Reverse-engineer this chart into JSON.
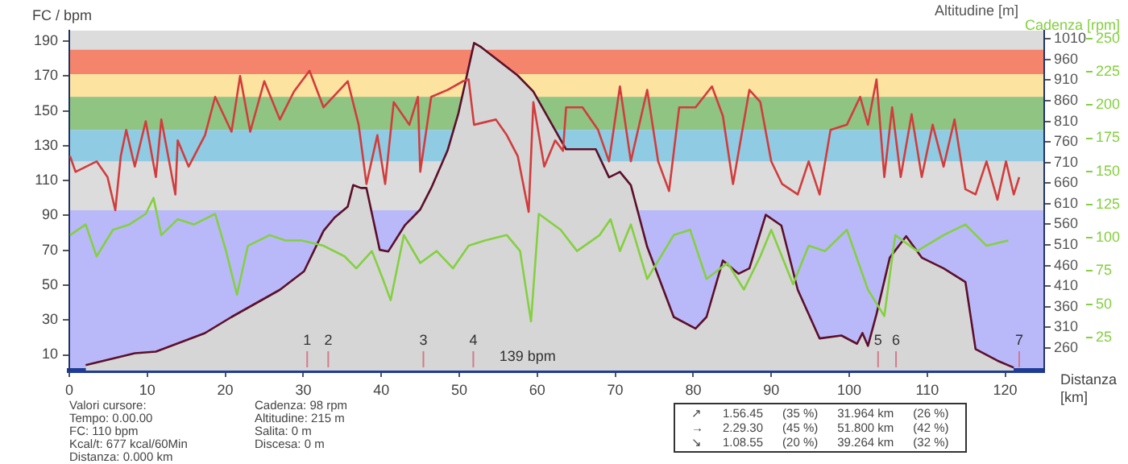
{
  "chart_data": {
    "type": "line",
    "xlabel": "Distanza [km]",
    "ylabel": "FC / bpm",
    "y2label": "Altitudine [m]",
    "y3label": "Cadenza [rpm]",
    "xlim": [
      0,
      125
    ],
    "xticks": [
      0,
      10,
      20,
      30,
      40,
      50,
      60,
      70,
      80,
      90,
      100,
      110,
      120
    ],
    "ylim": [
      1,
      196
    ],
    "yticks": [
      10,
      30,
      50,
      70,
      90,
      110,
      130,
      150,
      170,
      190
    ],
    "y2lim": [
      205,
      1030
    ],
    "y2ticks": [
      260,
      310,
      360,
      410,
      460,
      510,
      560,
      610,
      660,
      710,
      760,
      810,
      860,
      910,
      960,
      1010
    ],
    "y3lim": [
      0,
      256
    ],
    "y3ticks": [
      25,
      50,
      75,
      100,
      125,
      150,
      175,
      200,
      225,
      250
    ],
    "legend": false,
    "marker": "none",
    "line_style": "solid",
    "bands": [
      {
        "axis": "y",
        "from": 171,
        "to": 185,
        "color": "#f4846c"
      },
      {
        "axis": "y",
        "from": 158,
        "to": 171,
        "color": "#fde3a0"
      },
      {
        "axis": "y",
        "from": 139,
        "to": 158,
        "color": "#8fc483"
      },
      {
        "axis": "y",
        "from": 121,
        "to": 139,
        "color": "#8fcbe3"
      },
      {
        "axis": "y",
        "from": 1,
        "to": 93,
        "color": "#b9b9fa"
      }
    ],
    "series": [
      {
        "color": "#d23c3c",
        "x": [
          0.1,
          0.8,
          3.5,
          4.9,
          5.9,
          6.6,
          7.3,
          8.4,
          9.8,
          11.1,
          11.8,
          13.6,
          13.9,
          15.3,
          17.4,
          18.7,
          20.8,
          21.9,
          23.2,
          25.0,
          27.0,
          28.8,
          30.8,
          32.6,
          35.7,
          37.1,
          38.1,
          39.5,
          40.5,
          41.6,
          43.6,
          44.7,
          45.0,
          46.4,
          48.5,
          50.5,
          51.2,
          51.9,
          54.7,
          56.1,
          57.5,
          58.9,
          59.5,
          60.9,
          62.3,
          63.3,
          63.7,
          65.8,
          67.8,
          69.2,
          70.6,
          72.0,
          74.1,
          75.5,
          76.9,
          78.2,
          80.3,
          82.4,
          83.8,
          85.1,
          87.2,
          88.6,
          90.0,
          91.4,
          93.4,
          94.8,
          96.2,
          97.6,
          99.7,
          101.4,
          102.4,
          103.5,
          104.5,
          105.5,
          106.6,
          108.0,
          109.3,
          110.7,
          112.1,
          113.5,
          114.9,
          116.2,
          117.6,
          119.0,
          120.1,
          121.1,
          121.8
        ],
        "values": [
          124,
          115,
          121,
          112,
          93,
          124,
          139,
          118,
          144,
          112,
          145,
          102,
          133,
          118,
          136,
          158,
          138,
          170,
          138,
          167,
          145,
          161,
          173,
          152,
          167,
          142,
          108,
          136,
          108,
          155,
          142,
          158,
          115,
          158,
          162,
          167,
          168,
          142,
          145,
          136,
          124,
          92,
          155,
          118,
          133,
          127,
          152,
          152,
          139,
          121,
          164,
          121,
          162,
          121,
          104,
          152,
          152,
          164,
          147,
          108,
          162,
          155,
          121,
          108,
          102,
          121,
          102,
          139,
          142,
          158,
          142,
          168,
          112,
          152,
          112,
          148,
          112,
          142,
          118,
          145,
          105,
          102,
          121,
          99,
          121,
          102,
          112
        ]
      },
      {
        "axis": "y3",
        "color": "#84d040",
        "x": [
          0.1,
          2.1,
          3.5,
          5.6,
          7.7,
          9.8,
          10.8,
          11.8,
          13.9,
          16.0,
          18.7,
          20.1,
          21.5,
          22.9,
          25.7,
          27.7,
          29.8,
          32.6,
          35.3,
          36.8,
          38.8,
          40.2,
          41.2,
          42.9,
          45.0,
          47.1,
          49.2,
          51.2,
          53.3,
          56.1,
          57.8,
          59.2,
          60.2,
          63.0,
          65.1,
          68.0,
          69.4,
          70.6,
          72.0,
          74.1,
          77.5,
          79.6,
          81.7,
          84.4,
          86.5,
          88.6,
          90.0,
          92.8,
          94.8,
          96.9,
          99.7,
          102.4,
          104.5,
          105.9,
          108.7,
          112.1,
          114.9,
          117.6,
          120.4
        ],
        "values": [
          102,
          110,
          86,
          106,
          110,
          118,
          130,
          102,
          114,
          110,
          118,
          90,
          57,
          94,
          102,
          98,
          98,
          94,
          86,
          77,
          90,
          69,
          53,
          102,
          81,
          90,
          77,
          94,
          98,
          102,
          90,
          37,
          118,
          106,
          90,
          102,
          114,
          90,
          110,
          69,
          102,
          106,
          69,
          81,
          61,
          86,
          106,
          65,
          94,
          90,
          106,
          61,
          41,
          102,
          90,
          102,
          110,
          94,
          98
        ]
      },
      {
        "type": "area",
        "axis": "y2",
        "color": "#5c0f2a",
        "x": [
          2.1,
          8.4,
          11.1,
          17.4,
          20.8,
          27.0,
          30.1,
          32.6,
          34.0,
          35.7,
          36.4,
          37.4,
          38.1,
          39.8,
          40.9,
          43.0,
          45.0,
          46.4,
          48.5,
          49.9,
          51.9,
          52.8,
          57.5,
          59.5,
          63.0,
          63.7,
          67.5,
          69.2,
          70.6,
          72.0,
          74.1,
          77.5,
          80.3,
          81.7,
          83.8,
          85.8,
          87.2,
          89.3,
          91.3,
          93.4,
          96.2,
          99.0,
          101.0,
          101.7,
          102.4,
          103.5,
          105.2,
          107.3,
          109.3,
          112.1,
          114.9,
          116.2,
          119.0,
          121.1
        ],
        "values": [
          218,
          247,
          251,
          296,
          335,
          401,
          446,
          544,
          576,
          603,
          655,
          648,
          648,
          498,
          494,
          557,
          596,
          648,
          739,
          830,
          1000,
          990,
          921,
          882,
          765,
          742,
          742,
          674,
          687,
          655,
          505,
          335,
          307,
          335,
          472,
          440,
          453,
          583,
          557,
          401,
          283,
          290,
          270,
          296,
          265,
          342,
          479,
          531,
          479,
          453,
          420,
          257,
          229,
          212
        ]
      }
    ],
    "annotations": [
      "1",
      "2",
      "3",
      "4",
      "5",
      "6",
      "7",
      "139 bpm",
      "Valori cursore:\nTempo: 0.00.00\nFC: 110 bpm\nKcal/t: 677 kcal/60Min\nDistanza: 0.000 km",
      "Cadenza: 98 rpm\nAltitudine: 215 m\nSalita: 0 m\nDiscesa: 0 m",
      "↗\t1.56.45\t(35 %)\t31.964 km\t(26 %)\n→\t2.29.30\t(45 %)\t51.800 km\t(42 %)\n↘\t1.08.55\t(20 %)\t39.264 km\t(32 %)"
    ]
  }
}
